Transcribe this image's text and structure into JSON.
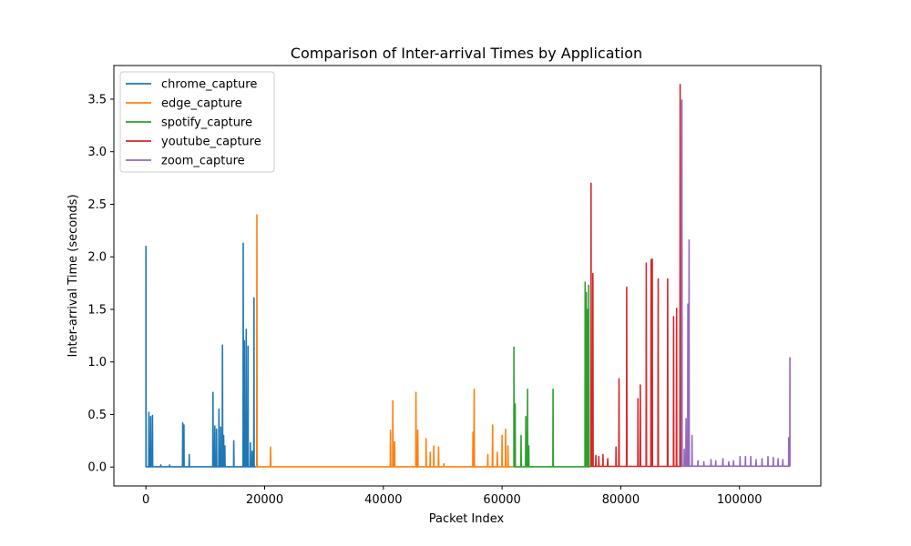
{
  "chart_data": {
    "type": "line",
    "title": "Comparison of Inter-arrival Times by Application",
    "xlabel": "Packet Index",
    "ylabel": "Inter-arrival Time (seconds)",
    "xlim": [
      -5400,
      113700
    ],
    "ylim": [
      -0.18,
      3.82
    ],
    "xticks": [
      0,
      20000,
      40000,
      60000,
      80000,
      100000
    ],
    "yticks": [
      0.0,
      0.5,
      1.0,
      1.5,
      2.0,
      2.5,
      3.0,
      3.5
    ],
    "xtick_labels": [
      "0",
      "20000",
      "40000",
      "60000",
      "80000",
      "100000"
    ],
    "ytick_labels": [
      "0.0",
      "0.5",
      "1.0",
      "1.5",
      "2.0",
      "2.5",
      "3.0",
      "3.5"
    ],
    "grid": false,
    "legend_position": "top-left",
    "series": [
      {
        "name": "chrome_capture",
        "color": "#1f77b4",
        "x_range": [
          0,
          18500
        ],
        "baseline": 0.003,
        "spikes": [
          [
            0,
            2.1
          ],
          [
            500,
            0.52
          ],
          [
            800,
            0.48
          ],
          [
            1100,
            0.49
          ],
          [
            2500,
            0.02
          ],
          [
            4000,
            0.02
          ],
          [
            6200,
            0.42
          ],
          [
            6400,
            0.4
          ],
          [
            7300,
            0.12
          ],
          [
            11300,
            0.71
          ],
          [
            11600,
            0.39
          ],
          [
            11900,
            0.36
          ],
          [
            12300,
            0.55
          ],
          [
            12600,
            0.38
          ],
          [
            12900,
            1.16
          ],
          [
            13100,
            0.3
          ],
          [
            13300,
            0.2
          ],
          [
            14800,
            0.25
          ],
          [
            16400,
            2.13
          ],
          [
            16600,
            1.2
          ],
          [
            16900,
            1.31
          ],
          [
            17200,
            1.15
          ],
          [
            17600,
            0.23
          ],
          [
            17900,
            0.15
          ],
          [
            18200,
            1.61
          ]
        ]
      },
      {
        "name": "edge_capture",
        "color": "#ff7f0e",
        "x_range": [
          18500,
          62000
        ],
        "baseline": 0.003,
        "spikes": [
          [
            18700,
            2.4
          ],
          [
            21000,
            0.19
          ],
          [
            41200,
            0.35
          ],
          [
            41600,
            0.63
          ],
          [
            41900,
            0.24
          ],
          [
            45500,
            0.71
          ],
          [
            45800,
            0.35
          ],
          [
            47200,
            0.27
          ],
          [
            47900,
            0.14
          ],
          [
            48500,
            0.2
          ],
          [
            49300,
            0.19
          ],
          [
            50200,
            0.03
          ],
          [
            55100,
            0.33
          ],
          [
            55300,
            0.74
          ],
          [
            57600,
            0.12
          ],
          [
            58400,
            0.4
          ],
          [
            59200,
            0.14
          ],
          [
            60000,
            0.3
          ],
          [
            60600,
            0.36
          ],
          [
            61000,
            0.2
          ]
        ]
      },
      {
        "name": "spotify_capture",
        "color": "#2ca02c",
        "x_range": [
          62000,
          74800
        ],
        "baseline": 0.003,
        "spikes": [
          [
            62000,
            1.14
          ],
          [
            62200,
            0.6
          ],
          [
            63200,
            0.3
          ],
          [
            64000,
            0.48
          ],
          [
            64300,
            0.74
          ],
          [
            64500,
            0.2
          ],
          [
            68600,
            0.74
          ],
          [
            74000,
            1.76
          ],
          [
            74200,
            1.66
          ],
          [
            74400,
            1.5
          ],
          [
            74600,
            1.73
          ]
        ]
      },
      {
        "name": "youtube_capture",
        "color": "#d62728",
        "x_range": [
          74800,
          90200
        ],
        "baseline": 0.006,
        "spikes": [
          [
            75000,
            2.7
          ],
          [
            75300,
            1.84
          ],
          [
            75800,
            0.11
          ],
          [
            76300,
            0.1
          ],
          [
            77000,
            0.12
          ],
          [
            77800,
            0.08
          ],
          [
            79200,
            0.19
          ],
          [
            79700,
            0.84
          ],
          [
            81000,
            1.71
          ],
          [
            82900,
            0.65
          ],
          [
            83300,
            0.78
          ],
          [
            84300,
            1.94
          ],
          [
            85100,
            1.97
          ],
          [
            85300,
            1.98
          ],
          [
            86300,
            1.79
          ],
          [
            87900,
            1.79
          ],
          [
            88900,
            1.43
          ],
          [
            89400,
            1.51
          ],
          [
            90000,
            3.64
          ]
        ]
      },
      {
        "name": "zoom_capture",
        "color": "#9467bd",
        "x_range": [
          90200,
          108500
        ],
        "baseline": 0.008,
        "spikes": [
          [
            90300,
            3.49
          ],
          [
            90700,
            0.17
          ],
          [
            91000,
            0.46
          ],
          [
            91300,
            1.55
          ],
          [
            91500,
            2.16
          ],
          [
            92000,
            0.3
          ],
          [
            93000,
            0.06
          ],
          [
            94000,
            0.05
          ],
          [
            95200,
            0.07
          ],
          [
            96000,
            0.06
          ],
          [
            97200,
            0.08
          ],
          [
            98200,
            0.05
          ],
          [
            99000,
            0.06
          ],
          [
            100100,
            0.1
          ],
          [
            101000,
            0.1
          ],
          [
            101900,
            0.1
          ],
          [
            102800,
            0.07
          ],
          [
            103800,
            0.08
          ],
          [
            104800,
            0.1
          ],
          [
            105700,
            0.09
          ],
          [
            106500,
            0.08
          ],
          [
            107300,
            0.07
          ],
          [
            108300,
            0.28
          ],
          [
            108500,
            1.04
          ]
        ]
      }
    ]
  }
}
